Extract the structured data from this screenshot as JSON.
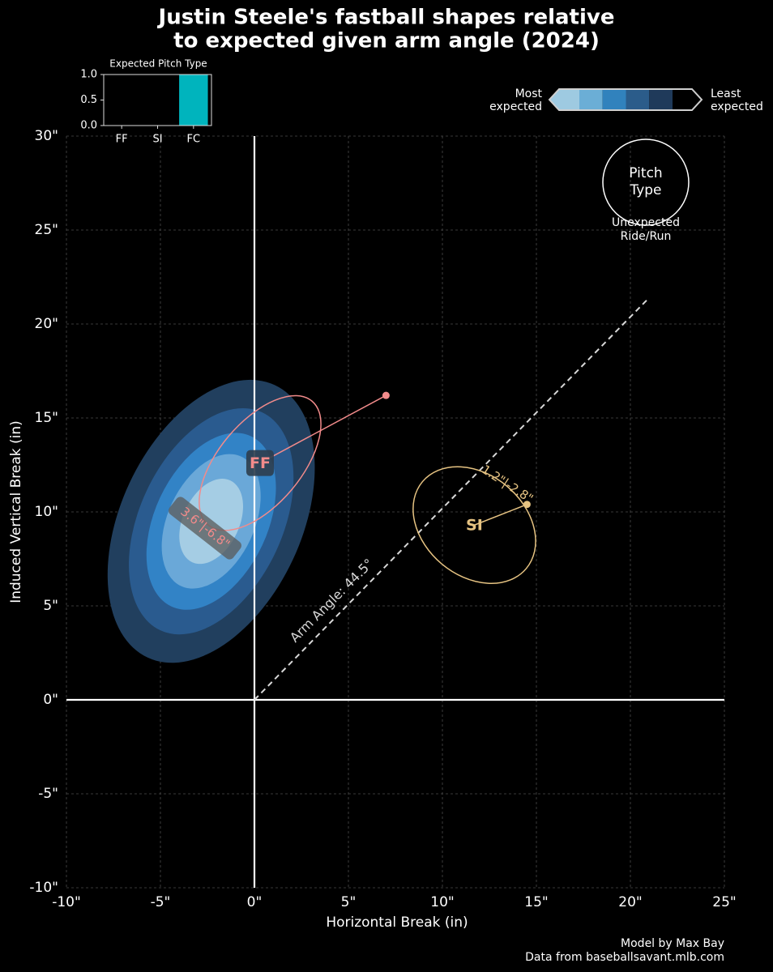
{
  "chart_data": [
    {
      "type": "scatter",
      "title": [
        "Justin Steele's fastball shapes relative",
        "to expected given arm angle (2024)"
      ],
      "x_label": "Horizontal Break (in)",
      "y_label": "Induced Vertical Break (in)",
      "xlim": [
        -10,
        25
      ],
      "ylim": [
        -10,
        30
      ],
      "xticks": [
        {
          "value": -10,
          "label": "-10\""
        },
        {
          "value": -5,
          "label": "-5\""
        },
        {
          "value": 0,
          "label": "0\""
        },
        {
          "value": 5,
          "label": "5\""
        },
        {
          "value": 10,
          "label": "10\""
        },
        {
          "value": 15,
          "label": "15\""
        },
        {
          "value": 20,
          "label": "20\""
        },
        {
          "value": 25,
          "label": "25\""
        }
      ],
      "yticks": [
        {
          "value": -10,
          "label": "-10\""
        },
        {
          "value": -5,
          "label": "-5\""
        },
        {
          "value": 0,
          "label": "0\""
        },
        {
          "value": 5,
          "label": "5\""
        },
        {
          "value": 10,
          "label": "10\""
        },
        {
          "value": 15,
          "label": "15\""
        },
        {
          "value": 20,
          "label": "20\""
        },
        {
          "value": 25,
          "label": "25\""
        },
        {
          "value": 30,
          "label": "30\""
        }
      ],
      "grid": true,
      "expected_region": {
        "cx": -2.3,
        "cy": 9.5,
        "angle": 65,
        "contours": [
          {
            "color": "#213f5e",
            "a": 8.0,
            "b": 4.8
          },
          {
            "color": "#2a5b8f",
            "a": 6.4,
            "b": 3.8
          },
          {
            "color": "#3283c6",
            "a": 5.0,
            "b": 3.0
          },
          {
            "color": "#6aa8d8",
            "a": 3.8,
            "b": 2.3
          },
          {
            "color": "#a5cde4",
            "a": 2.4,
            "b": 1.5
          }
        ]
      },
      "pitches": [
        {
          "name": "FF",
          "color": "#f28b8b",
          "x": 7.0,
          "y": 16.2,
          "ellipse": {
            "cx": 0.3,
            "cy": 12.6,
            "a": 4.3,
            "b": 2.2,
            "angle": 50
          },
          "annotation": "3.6\"|-6.8\""
        },
        {
          "name": "SI",
          "color": "#e6c382",
          "x": 14.5,
          "y": 10.4,
          "ellipse": {
            "cx": 11.7,
            "cy": 9.3,
            "a": 3.6,
            "b": 2.7,
            "angle": -40
          },
          "annotation": "1.2\"|-2.8\""
        }
      ],
      "arm_angle_label": "Arm Angle: 44.5°",
      "arm_angle_line": {
        "x": [
          0,
          21.0
        ],
        "y": [
          0,
          21.4
        ]
      },
      "colorbar": {
        "colors": [
          "#9ecae1",
          "#6baed6",
          "#3182bd",
          "#2b5c8a",
          "#1f3a5a",
          "#000000"
        ],
        "low_label": [
          "Most",
          "expected"
        ],
        "high_label": [
          "Least",
          "expected"
        ]
      },
      "key": {
        "circle_label": [
          "Pitch",
          "Type"
        ],
        "caption": [
          "Unexpected",
          "Ride/Run"
        ]
      },
      "credits": [
        "Model by Max Bay",
        "Data from baseballsavant.mlb.com"
      ]
    },
    {
      "type": "bar",
      "title": "Expected Pitch Type",
      "categories": [
        "FF",
        "SI",
        "FC"
      ],
      "values": [
        0,
        0,
        1
      ],
      "color": "#00b4bd",
      "ylim": [
        0,
        1
      ],
      "yticks": [
        {
          "value": 0,
          "label": "0.0"
        },
        {
          "value": 0.5,
          "label": "0.5"
        },
        {
          "value": 1,
          "label": "1.0"
        }
      ]
    }
  ]
}
